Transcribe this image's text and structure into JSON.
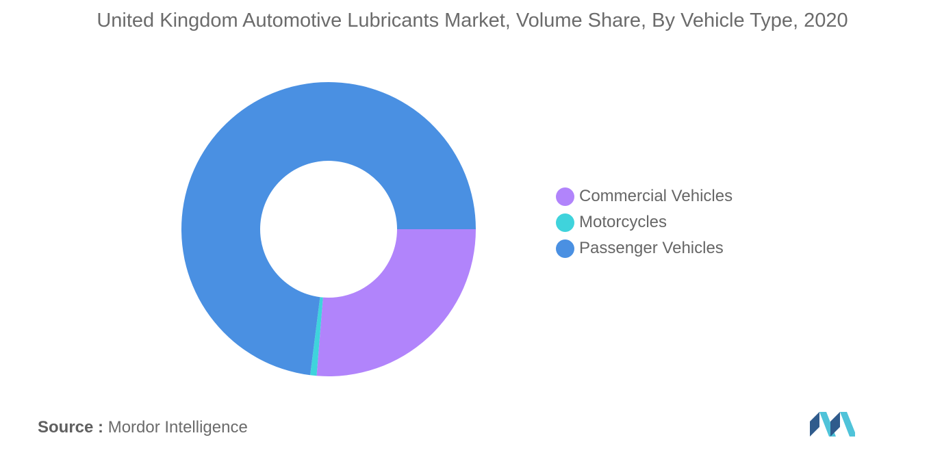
{
  "chart_data": {
    "type": "pie",
    "title": "United Kingdom Automotive Lubricants Market, Volume Share, By Vehicle Type, 2020",
    "categories": [
      "Commercial Vehicles",
      "Motorcycles",
      "Passenger Vehicles"
    ],
    "values": [
      26.3,
      0.7,
      73.0
    ],
    "colors": [
      "#b184fb",
      "#3fd3dc",
      "#4a90e2"
    ],
    "donut": true,
    "legend": "right"
  },
  "source": {
    "prefix": "Source :",
    "text": "Mordor Intelligence"
  },
  "logo": {
    "icon": "mordor-intelligence-logo",
    "colors": [
      "#2f5b8c",
      "#4fc3d9"
    ]
  }
}
